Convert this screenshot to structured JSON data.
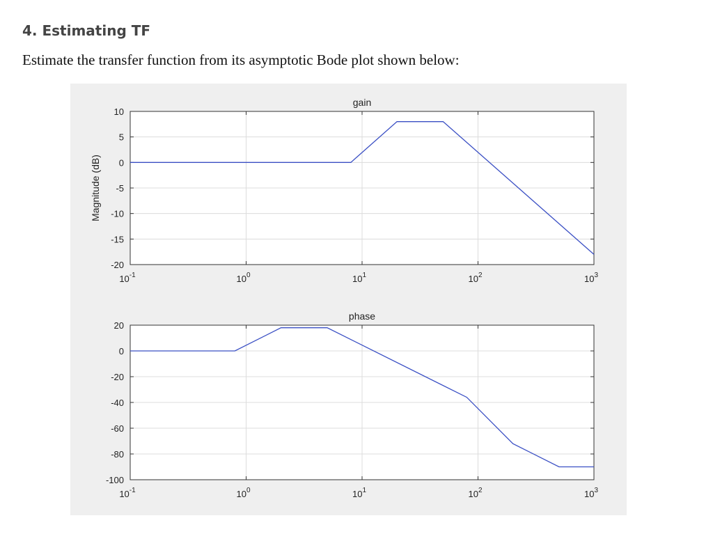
{
  "heading": "4. Estimating TF",
  "instruction": "Estimate the transfer function from its asymptotic Bode plot shown below:",
  "chart_data": [
    {
      "type": "line",
      "title": "gain",
      "ylabel": "Magnitude (dB)",
      "xscale": "log",
      "grid": true,
      "xlim": [
        0.1,
        1000
      ],
      "xticks": [
        {
          "value": 0.1,
          "label": "10",
          "exponent": -1
        },
        {
          "value": 1,
          "label": "10",
          "exponent": 0
        },
        {
          "value": 10,
          "label": "10",
          "exponent": 1
        },
        {
          "value": 100,
          "label": "10",
          "exponent": 2
        },
        {
          "value": 1000,
          "label": "10",
          "exponent": 3
        }
      ],
      "ylim": [
        -20,
        10
      ],
      "yticks": [
        -20,
        -15,
        -10,
        -5,
        0,
        5,
        10
      ],
      "x": [
        0.1,
        8,
        20,
        50,
        1000
      ],
      "series": [
        {
          "color": "#3a4fc4",
          "values": [
            0,
            0,
            8,
            8,
            -18
          ]
        }
      ]
    },
    {
      "type": "line",
      "title": "phase",
      "xscale": "log",
      "grid": true,
      "xlim": [
        0.1,
        1000
      ],
      "xticks": [
        {
          "value": 0.1,
          "label": "10",
          "exponent": -1
        },
        {
          "value": 1,
          "label": "10",
          "exponent": 0
        },
        {
          "value": 10,
          "label": "10",
          "exponent": 1
        },
        {
          "value": 100,
          "label": "10",
          "exponent": 2
        },
        {
          "value": 1000,
          "label": "10",
          "exponent": 3
        }
      ],
      "ylim": [
        -100,
        20
      ],
      "yticks": [
        -100,
        -80,
        -60,
        -40,
        -20,
        0,
        20
      ],
      "x": [
        0.1,
        0.8,
        2,
        5,
        80,
        200,
        500,
        1000
      ],
      "series": [
        {
          "color": "#3a4fc4",
          "values": [
            0,
            0,
            18,
            18,
            -36,
            -72,
            -90,
            -90
          ]
        }
      ]
    }
  ]
}
